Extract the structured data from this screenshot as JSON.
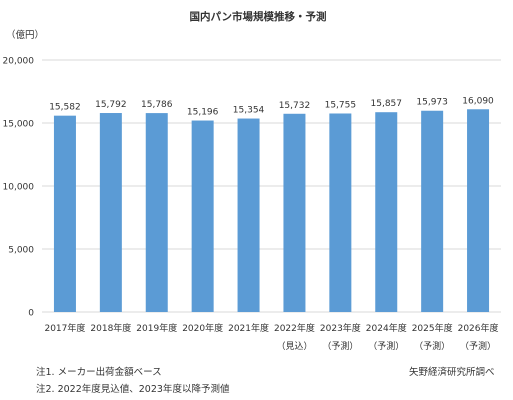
{
  "chart_data": {
    "type": "bar",
    "title": "国内パン市場規模推移・予測",
    "unit_label": "（億円）",
    "categories": [
      [
        "2017年度",
        ""
      ],
      [
        "2018年度",
        ""
      ],
      [
        "2019年度",
        ""
      ],
      [
        "2020年度",
        ""
      ],
      [
        "2021年度",
        ""
      ],
      [
        "2022年度",
        "（見込）"
      ],
      [
        "2023年度",
        "（予測）"
      ],
      [
        "2024年度",
        "（予測）"
      ],
      [
        "2025年度",
        "（予測）"
      ],
      [
        "2026年度",
        "（予測）"
      ]
    ],
    "values": [
      15582,
      15792,
      15786,
      15196,
      15354,
      15732,
      15755,
      15857,
      15973,
      16090
    ],
    "value_labels": [
      "15,582",
      "15,792",
      "15,786",
      "15,196",
      "15,354",
      "15,732",
      "15,755",
      "15,857",
      "15,973",
      "16,090"
    ],
    "ylim": [
      0,
      20000
    ],
    "yticks": [
      0,
      5000,
      10000,
      15000,
      20000
    ],
    "ytick_labels": [
      "0",
      "5,000",
      "10,000",
      "15,000",
      "20,000"
    ],
    "grid": true,
    "bar_color": "#5b9bd5",
    "grid_color": "#d9d9d9",
    "text_color": "#333333"
  },
  "notes": {
    "note1": "注1. メーカー出荷金額ベース",
    "note2": "注2. 2022年度見込値、2023年度以降予測値",
    "source": "矢野経済研究所調べ"
  }
}
